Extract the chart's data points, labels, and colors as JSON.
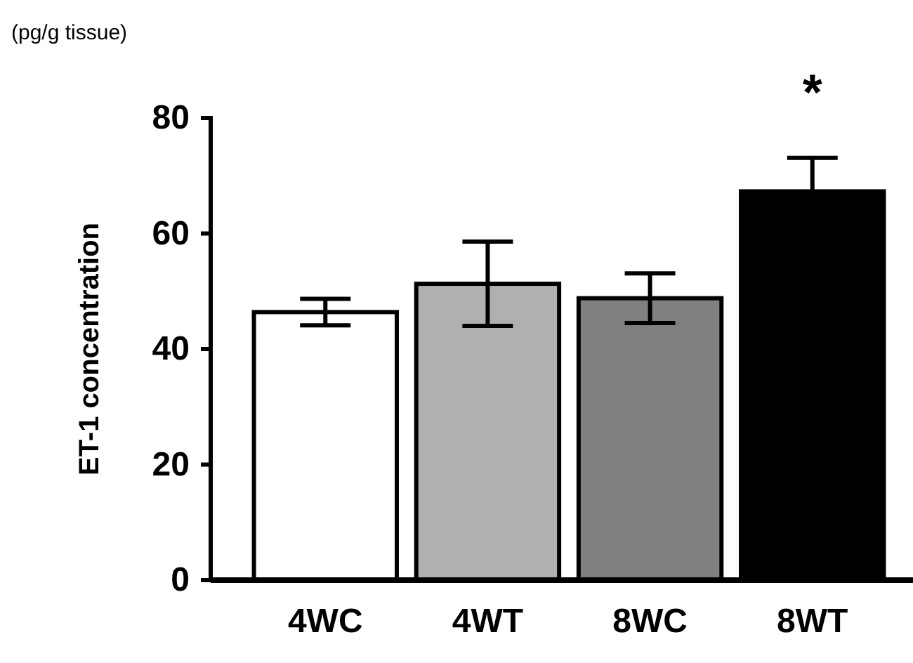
{
  "chart_data": {
    "type": "bar",
    "ylabel": "ET-1 concentration",
    "categories": [
      "4WC",
      "4WT",
      "8WC",
      "8WT"
    ],
    "values": [
      46.4,
      51.3,
      48.8,
      67.3
    ],
    "errors": [
      2.3,
      7.3,
      4.3,
      5.8
    ],
    "colors": [
      "#ffffff",
      "#b0b0b0",
      "#808080",
      "#000000"
    ],
    "ylim": [
      0,
      80
    ],
    "yticks": [
      0,
      20,
      40,
      60,
      80
    ],
    "annotations": [
      "(pg/g tissue)",
      "*"
    ]
  }
}
